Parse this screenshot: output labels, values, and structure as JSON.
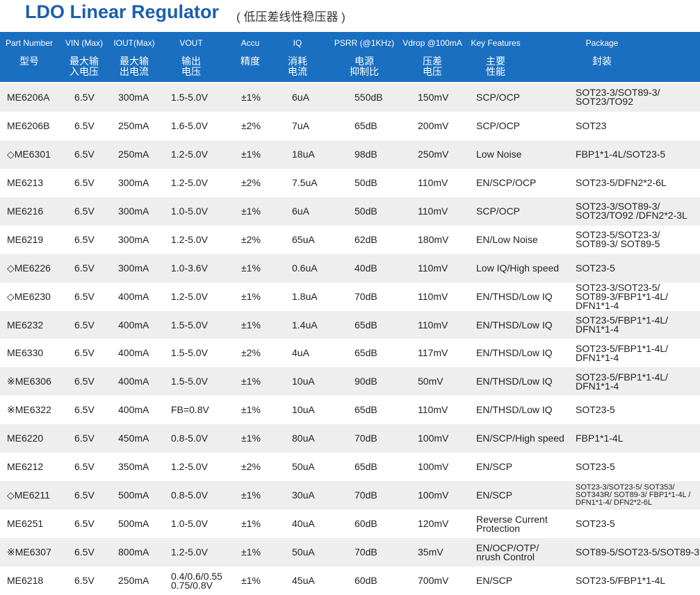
{
  "header": {
    "title": "LDO Linear Regulator",
    "subtitle": "( 低压差线性稳压器 )"
  },
  "table": {
    "columns": [
      {
        "en": "Part Number",
        "zh": [
          "型号"
        ]
      },
      {
        "en": "VIN (Max)",
        "zh": [
          "最大输",
          "入电压"
        ]
      },
      {
        "en": "IOUT(Max)",
        "zh": [
          "最大输",
          "出电流"
        ]
      },
      {
        "en": "VOUT",
        "zh": [
          "输出",
          "电压"
        ]
      },
      {
        "en": "Accu",
        "zh": [
          "精度"
        ]
      },
      {
        "en": "IQ",
        "zh": [
          "消耗",
          "电流"
        ]
      },
      {
        "en": "PSRR (@1KHz)",
        "zh": [
          "电源",
          "抑制比"
        ]
      },
      {
        "en": "Vdrop @100mA",
        "zh": [
          "压差",
          "电压"
        ]
      },
      {
        "en": "Key Features",
        "zh": [
          "主要",
          "性能"
        ]
      },
      {
        "en": "Package",
        "zh": [
          "封装"
        ]
      }
    ],
    "rows": [
      [
        "ME6206A",
        "6.5V",
        "300mA",
        "1.5-5.0V",
        "±1%",
        "6uA",
        "550dB",
        "150mV",
        "SCP/OCP",
        [
          "SOT23-3/SOT89-3/",
          "SOT23/TO92"
        ]
      ],
      [
        "ME6206B",
        "6.5V",
        "250mA",
        "1.6-5.0V",
        "±2%",
        "7uA",
        "65dB",
        "200mV",
        "SCP/OCP",
        "SOT23"
      ],
      [
        "◇ME6301",
        "6.5V",
        "250mA",
        "1.2-5.0V",
        "±1%",
        "18uA",
        "98dB",
        "250mV",
        "Low Noise",
        "FBP1*1-4L/SOT23-5"
      ],
      [
        "ME6213",
        "6.5V",
        "300mA",
        "1.2-5.0V",
        "±2%",
        "7.5uA",
        "50dB",
        "110mV",
        "EN/SCP/OCP",
        "SOT23-5/DFN2*2-6L"
      ],
      [
        "ME6216",
        "6.5V",
        "300mA",
        "1.0-5.0V",
        "±1%",
        "6uA",
        "50dB",
        "110mV",
        "SCP/OCP",
        [
          "SOT23-3/SOT89-3/",
          "SOT23/TO92 /DFN2*2-3L"
        ]
      ],
      [
        "ME6219",
        "6.5V",
        "300mA",
        "1.2-5.0V",
        "±2%",
        "65uA",
        "62dB",
        "180mV",
        "EN/Low Noise",
        [
          "SOT23-5/SOT23-3/",
          "SOT89-3/ SOT89-5"
        ]
      ],
      [
        "◇ME6226",
        "6.5V",
        "300mA",
        "1.0-3.6V",
        "±1%",
        "0.6uA",
        "40dB",
        "110mV",
        "Low IQ/High speed",
        "SOT23-5"
      ],
      [
        "◇ME6230",
        "6.5V",
        "400mA",
        "1.2-5.0V",
        "±1%",
        "1.8uA",
        "70dB",
        "110mV",
        "EN/THSD/Low IQ",
        [
          "SOT23-3/SOT23-5/",
          "SOT89-3/FBP1*1-4L/",
          "DFN1*1-4"
        ]
      ],
      [
        "ME6232",
        "6.5V",
        "400mA",
        "1.5-5.0V",
        "±1%",
        "1.4uA",
        "65dB",
        "110mV",
        "EN/THSD/Low IQ",
        [
          "SOT23-5/FBP1*1-4L/",
          "DFN1*1-4"
        ]
      ],
      [
        "ME6330",
        "6.5V",
        "400mA",
        "1.5-5.0V",
        "±2%",
        "4uA",
        "65dB",
        "117mV",
        "EN/THSD/Low IQ",
        [
          "SOT23-5/FBP1*1-4L/",
          "DFN1*1-4"
        ]
      ],
      [
        "※ME6306",
        "6.5V",
        "400mA",
        "1.5-5.0V",
        "±1%",
        "10uA",
        "90dB",
        "50mV",
        "EN/THSD/Low IQ",
        [
          "SOT23-5/FBP1*1-4L/",
          "DFN1*1-4"
        ]
      ],
      [
        "※ME6322",
        "6.5V",
        "400mA",
        "FB=0.8V",
        "±1%",
        "10uA",
        "65dB",
        "110mV",
        "EN/THSD/Low IQ",
        "SOT23-5"
      ],
      [
        "ME6220",
        "6.5V",
        "450mA",
        "0.8-5.0V",
        "±1%",
        "80uA",
        "70dB",
        "100mV",
        "EN/SCP/High speed",
        "FBP1*1-4L"
      ],
      [
        "ME6212",
        "6.5V",
        "350mA",
        "1.2-5.0V",
        "±2%",
        "50uA",
        "65dB",
        "100mV",
        "EN/SCP",
        "SOT23-5"
      ],
      [
        "◇ME6211",
        "6.5V",
        "500mA",
        "0.8-5.0V",
        "±1%",
        "30uA",
        "70dB",
        "100mV",
        "EN/SCP",
        [
          "SOT23-3/SOT23-5/ SOT353/",
          "SOT343R/ SOT89-3/ FBP1*1-4L /",
          "DFN1*1-4/ DFN2*2-6L"
        ]
      ],
      [
        "ME6251",
        "6.5V",
        "500mA",
        "1.0-5.0V",
        "±1%",
        "40uA",
        "60dB",
        "120mV",
        [
          "Reverse Current",
          "Protection"
        ],
        "SOT23-5"
      ],
      [
        "※ME6307",
        "6.5V",
        "800mA",
        "1.2-5.0V",
        "±1%",
        "50uA",
        "70dB",
        "35mV",
        [
          "EN/OCP/OTP/",
          "nrush Control"
        ],
        "SOT89-5/SOT23-5/SOT89-3"
      ],
      [
        "ME6218",
        "6.5V",
        "250mA",
        [
          "0.4/0.6/0.55",
          "0.75/0.8V"
        ],
        "±1%",
        "45uA",
        "60dB",
        "700mV",
        "EN/SCP",
        "SOT23-5/FBP1*1-4L"
      ]
    ]
  }
}
